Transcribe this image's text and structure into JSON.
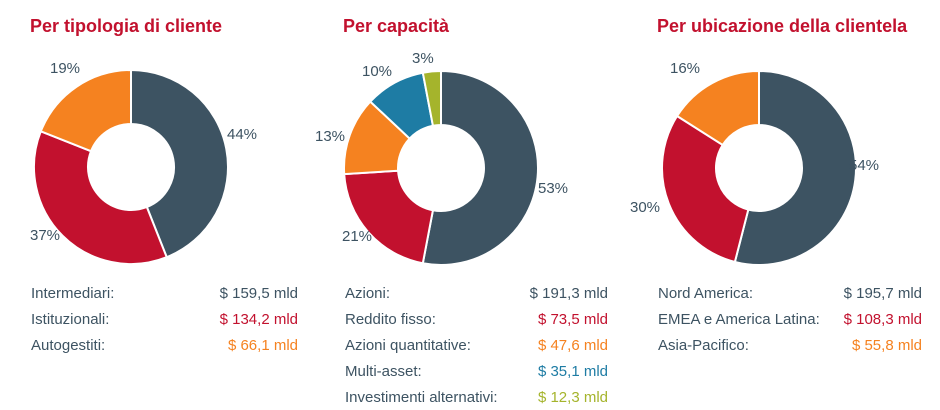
{
  "colors": {
    "slate": "#3d5362",
    "red": "#c2112e",
    "orange": "#f58220",
    "blue": "#1e7ca4",
    "green": "#a5b42c",
    "title": "#c2112e",
    "text": "#3d5362",
    "background": "#ffffff"
  },
  "charts": [
    {
      "title": "Per tipologia di cliente",
      "legend": [
        {
          "label": "Intermediari:",
          "value": "$ 159,5 mld",
          "color": "#3d5362"
        },
        {
          "label": "Istituzionali:",
          "value": "$ 134,2 mld",
          "color": "#c2112e"
        },
        {
          "label": "Autogestiti:",
          "value": "$ 66,1 mld",
          "color": "#f58220"
        }
      ]
    },
    {
      "title": "Per capacità",
      "legend": [
        {
          "label": "Azioni:",
          "value": "$ 191,3 mld",
          "color": "#3d5362"
        },
        {
          "label": "Reddito fisso:",
          "value": "$ 73,5 mld",
          "color": "#c2112e"
        },
        {
          "label": "Azioni quantitative:",
          "value": "$ 47,6 mld",
          "color": "#f58220"
        },
        {
          "label": "Multi-asset:",
          "value": "$ 35,1 mld",
          "color": "#1e7ca4"
        },
        {
          "label": "Investimenti alternativi:",
          "value": "$ 12,3 mld",
          "color": "#a5b42c"
        }
      ]
    },
    {
      "title": "Per ubicazione della clientela",
      "legend": [
        {
          "label": "Nord America:",
          "value": "$ 195,7 mld",
          "color": "#3d5362"
        },
        {
          "label": "EMEA e America Latina:",
          "value": "$ 108,3 mld",
          "color": "#c2112e"
        },
        {
          "label": "Asia-Pacifico:",
          "value": "$ 55,8 mld",
          "color": "#f58220"
        }
      ]
    }
  ],
  "chart_data": [
    {
      "type": "pie",
      "subtype": "donut",
      "title": "Per tipologia di cliente",
      "categories": [
        "Intermediari",
        "Istituzionali",
        "Autogestiti"
      ],
      "values_percent": [
        44,
        37,
        19
      ],
      "values_usd_mld": [
        159.5,
        134.2,
        66.1
      ],
      "pct_labels": [
        "44%",
        "37%",
        "19%"
      ],
      "colors": [
        "#3d5362",
        "#c2112e",
        "#f58220"
      ],
      "start_angle_deg": 0,
      "direction": "clockwise",
      "inner_radius_ratio": 0.44
    },
    {
      "type": "pie",
      "subtype": "donut",
      "title": "Per capacità",
      "categories": [
        "Azioni",
        "Reddito fisso",
        "Azioni quantitative",
        "Multi-asset",
        "Investimenti alternativi"
      ],
      "values_percent": [
        53,
        21,
        13,
        10,
        3
      ],
      "values_usd_mld": [
        191.3,
        73.5,
        47.6,
        35.1,
        12.3
      ],
      "pct_labels": [
        "53%",
        "21%",
        "13%",
        "10%",
        "3%"
      ],
      "colors": [
        "#3d5362",
        "#c2112e",
        "#f58220",
        "#1e7ca4",
        "#a5b42c"
      ],
      "start_angle_deg": 0,
      "direction": "clockwise",
      "inner_radius_ratio": 0.44
    },
    {
      "type": "pie",
      "subtype": "donut",
      "title": "Per ubicazione della clientela",
      "categories": [
        "Nord America",
        "EMEA e America Latina",
        "Asia-Pacifico"
      ],
      "values_percent": [
        54,
        30,
        16
      ],
      "values_usd_mld": [
        195.7,
        108.3,
        55.8
      ],
      "pct_labels": [
        "54%",
        "30%",
        "16%"
      ],
      "colors": [
        "#3d5362",
        "#c2112e",
        "#f58220"
      ],
      "start_angle_deg": 0,
      "direction": "clockwise",
      "inner_radius_ratio": 0.44
    }
  ]
}
